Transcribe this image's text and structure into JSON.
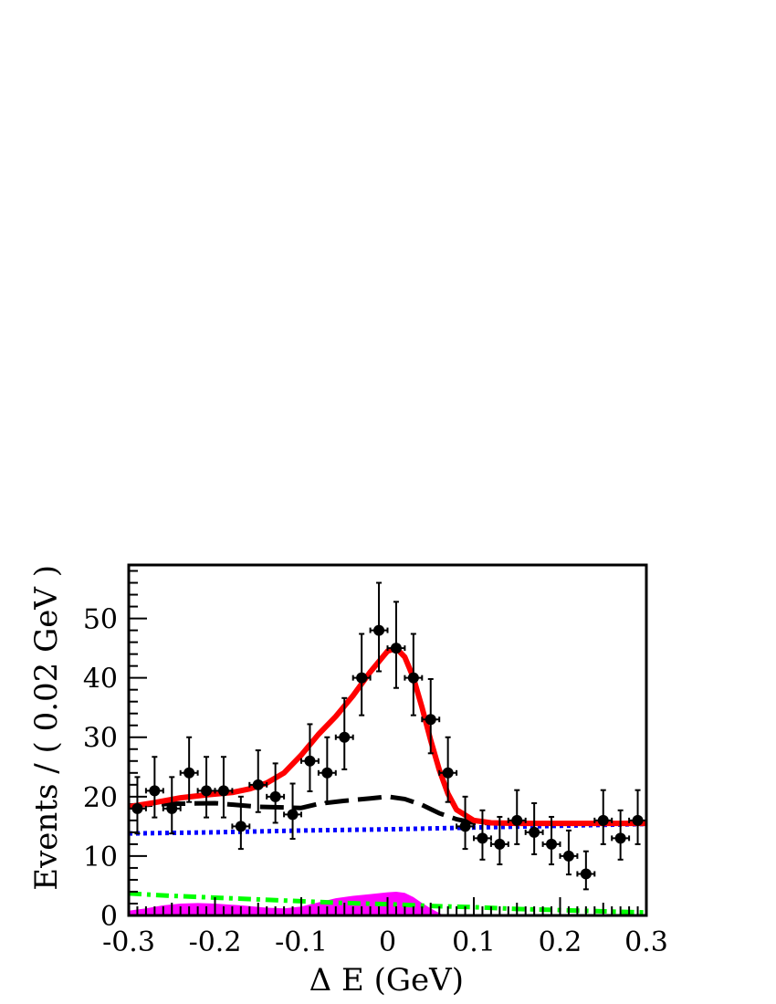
{
  "chart_data": {
    "type": "scatter",
    "xlabel": "Δ E (GeV)",
    "ylabel": "Events / ( 0.02 GeV )",
    "xlim": [
      -0.3,
      0.3
    ],
    "ylim": [
      0,
      59
    ],
    "x_ticks": [
      "-0.3",
      "-0.2",
      "-0.1",
      "0",
      "0.1",
      "0.2",
      "0.3"
    ],
    "y_ticks": [
      "0",
      "10",
      "20",
      "30",
      "40",
      "50"
    ],
    "x_tick_values": [
      -0.3,
      -0.2,
      -0.1,
      0,
      0.1,
      0.2,
      0.3
    ],
    "y_tick_values": [
      0,
      10,
      20,
      30,
      40,
      50
    ],
    "grid": false,
    "colors": {
      "data": "#000000",
      "total_fit": "#ff0000",
      "black_dashed": "#000000",
      "blue_dotted": "#0000ff",
      "green_dashdot": "#00ff00",
      "magenta_fill": "#ff00ff"
    },
    "data_points": {
      "x": [
        -0.29,
        -0.27,
        -0.25,
        -0.23,
        -0.21,
        -0.19,
        -0.17,
        -0.15,
        -0.13,
        -0.11,
        -0.09,
        -0.07,
        -0.05,
        -0.03,
        -0.01,
        0.01,
        0.03,
        0.05,
        0.07,
        0.09,
        0.11,
        0.13,
        0.15,
        0.17,
        0.19,
        0.21,
        0.23,
        0.25,
        0.27,
        0.29
      ],
      "y": [
        18,
        21,
        18,
        24,
        21,
        21,
        15,
        22,
        20,
        17,
        26,
        24,
        30,
        40,
        48,
        45,
        40,
        33,
        24,
        15,
        13,
        12,
        16,
        14,
        12,
        10,
        7,
        16,
        13,
        16
      ],
      "xerr": 0.01,
      "yerr_low": [
        4.2,
        4.5,
        4.2,
        4.9,
        4.5,
        4.5,
        3.8,
        4.6,
        4.4,
        4.1,
        5.1,
        4.9,
        5.4,
        6.3,
        6.9,
        6.7,
        6.3,
        5.7,
        4.9,
        3.8,
        3.6,
        3.4,
        4.0,
        3.7,
        3.4,
        3.1,
        2.6,
        4.0,
        3.6,
        4.0
      ],
      "yerr_high": [
        5.3,
        5.7,
        5.3,
        6.0,
        5.7,
        5.7,
        5.0,
        5.8,
        5.6,
        5.2,
        6.2,
        6.0,
        6.6,
        7.4,
        8.0,
        7.8,
        7.4,
        6.8,
        6.0,
        5.0,
        4.7,
        4.6,
        5.1,
        4.9,
        4.6,
        4.3,
        3.8,
        5.1,
        4.7,
        5.1
      ]
    },
    "curves": [
      {
        "style": "solid",
        "x": [
          -0.3,
          -0.27,
          -0.24,
          -0.21,
          -0.18,
          -0.16,
          -0.14,
          -0.12,
          -0.1,
          -0.08,
          -0.06,
          -0.04,
          -0.02,
          0.0,
          0.01,
          0.02,
          0.03,
          0.04,
          0.05,
          0.06,
          0.07,
          0.08,
          0.1,
          0.12,
          0.15,
          0.2,
          0.25,
          0.3
        ],
        "y": [
          18.3,
          19,
          19.8,
          20.3,
          20.7,
          21.3,
          22.3,
          24,
          27,
          30.5,
          33.5,
          37,
          41,
          44.5,
          45,
          43.5,
          40,
          35,
          29.5,
          24.5,
          20.5,
          17.8,
          16,
          15.6,
          15.5,
          15.5,
          15.5,
          15.5
        ]
      },
      {
        "style": "dashed",
        "x": [
          -0.3,
          -0.25,
          -0.2,
          -0.15,
          -0.1,
          -0.08,
          -0.05,
          -0.02,
          0.0,
          0.02,
          0.04,
          0.06,
          0.08,
          0.1,
          0.15,
          0.2,
          0.25,
          0.3
        ],
        "y": [
          18.5,
          18.8,
          18.9,
          18.3,
          18.1,
          18.8,
          19.3,
          19.7,
          20,
          19.6,
          18.6,
          17.2,
          16.2,
          15.6,
          15.5,
          15.5,
          15.5,
          15.5
        ]
      },
      {
        "style": "dotted",
        "x": [
          -0.3,
          -0.2,
          -0.1,
          0.0,
          0.1,
          0.2,
          0.3
        ],
        "y": [
          13.8,
          14,
          14.3,
          14.5,
          14.8,
          15.1,
          15.4
        ]
      },
      {
        "style": "dashdot",
        "x": [
          -0.3,
          -0.25,
          -0.2,
          -0.15,
          -0.1,
          -0.05,
          0.0,
          0.05,
          0.1,
          0.15,
          0.2,
          0.25,
          0.3
        ],
        "y": [
          3.7,
          3.3,
          3.0,
          2.7,
          2.4,
          2.1,
          1.9,
          1.6,
          1.4,
          1.1,
          0.9,
          0.7,
          0.5
        ]
      },
      {
        "style": "filled",
        "x": [
          -0.3,
          -0.28,
          -0.26,
          -0.24,
          -0.22,
          -0.2,
          -0.17,
          -0.14,
          -0.12,
          -0.1,
          -0.08,
          -0.06,
          -0.04,
          -0.02,
          0.0,
          0.01,
          0.02,
          0.03,
          0.04,
          0.05,
          0.06,
          0.065,
          0.3
        ],
        "y": [
          0.8,
          1.2,
          1.7,
          2.0,
          2.1,
          2.0,
          1.7,
          1.3,
          1.2,
          1.5,
          2.2,
          2.9,
          3.3,
          3.6,
          3.9,
          4.0,
          3.8,
          3.1,
          2.1,
          1.2,
          0.4,
          0,
          0
        ]
      }
    ]
  }
}
